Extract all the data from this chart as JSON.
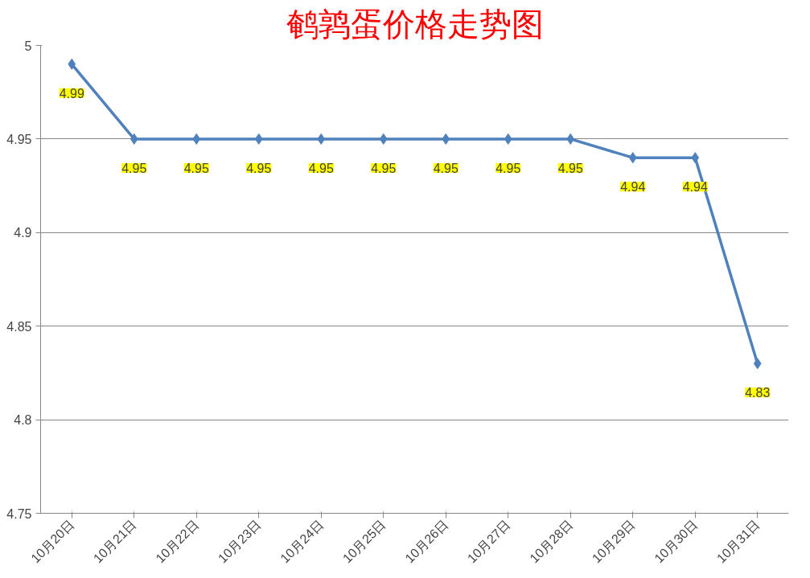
{
  "chart_data": {
    "type": "line",
    "title": "鹌鹑蛋价格走势图",
    "categories": [
      "10月20日",
      "10月21日",
      "10月22日",
      "10月23日",
      "10月24日",
      "10月25日",
      "10月26日",
      "10月27日",
      "10月28日",
      "10月29日",
      "10月30日",
      "10月31日"
    ],
    "series": [
      {
        "color": "#4f81bd",
        "values": [
          4.99,
          4.95,
          4.95,
          4.95,
          4.95,
          4.95,
          4.95,
          4.95,
          4.95,
          4.94,
          4.94,
          4.83
        ]
      }
    ],
    "ylim": [
      4.75,
      5
    ],
    "yticks": [
      4.75,
      4.8,
      4.85,
      4.9,
      4.95,
      5
    ],
    "grid": "y",
    "marker": "diamond",
    "line_style": "solid",
    "data_labels": true
  }
}
